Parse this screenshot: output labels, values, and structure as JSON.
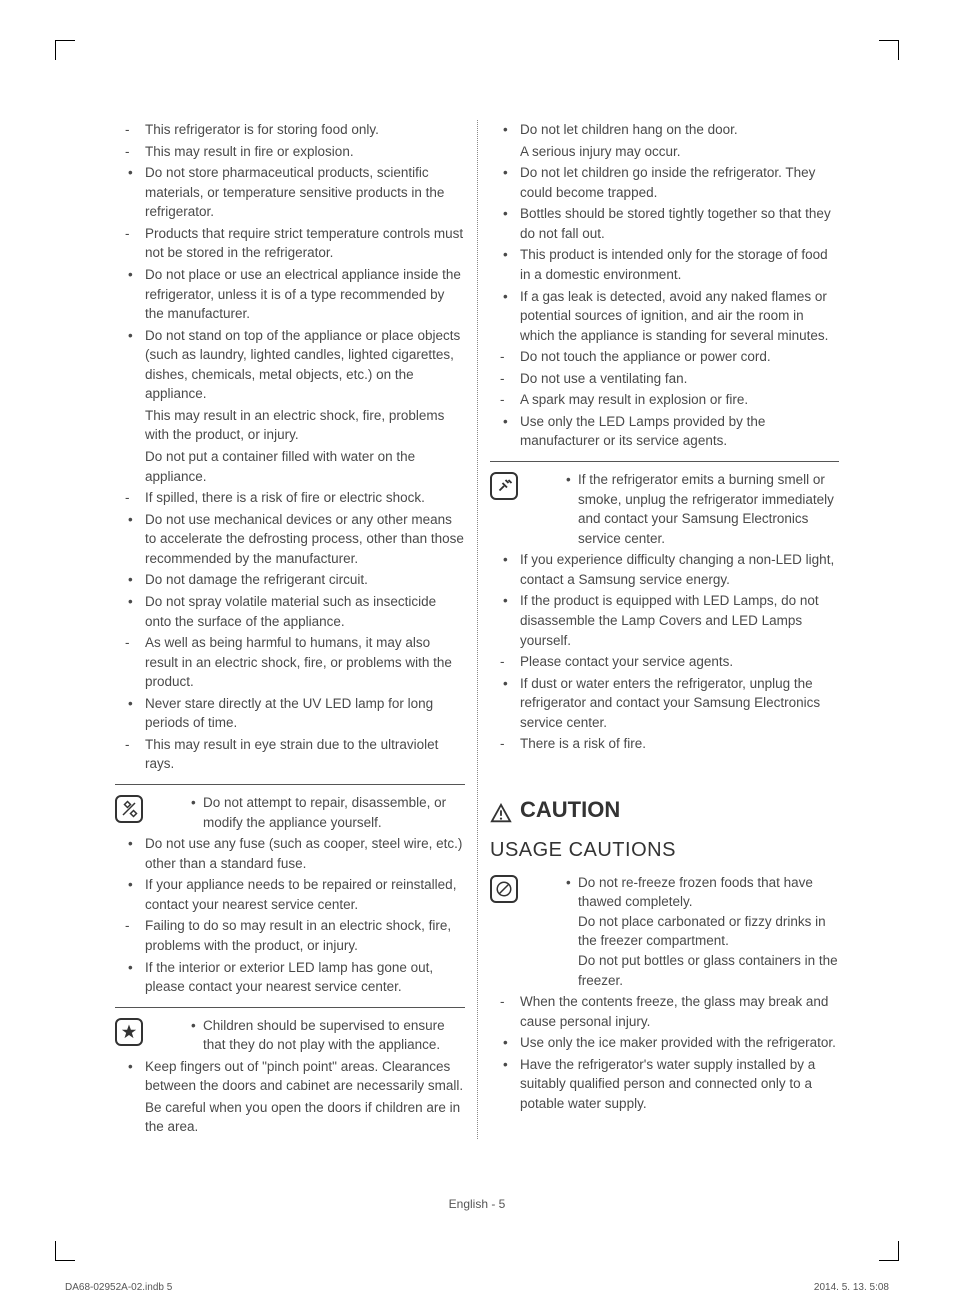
{
  "left": {
    "list1": [
      {
        "type": "dash",
        "text": "This refrigerator is for storing food only."
      },
      {
        "type": "dash",
        "text": "This may result in fire or  explosion."
      },
      {
        "type": "bullet",
        "text": "Do not store pharmaceutical products, scientific materials, or temperature sensitive products in the refrigerator."
      },
      {
        "type": "dash",
        "text": "Products that require strict temperature controls must not be stored in the refrigerator."
      },
      {
        "type": "bullet",
        "text": "Do not place or use an electrical appliance inside the refrigerator, unless it is of a type recommended by the manufacturer."
      },
      {
        "type": "bullet",
        "text": "Do not stand on top of the appliance or place objects (such as laundry, lighted candles, lighted cigarettes, dishes, chemicals, metal objects, etc.) on the appliance."
      },
      {
        "type": "cont",
        "text": "This may result in an electric shock, fire, problems with the product, or injury."
      },
      {
        "type": "cont",
        "text": "Do not put a container filled with water on the appliance."
      },
      {
        "type": "dash",
        "text": "If spilled, there is a risk of fire or electric shock."
      },
      {
        "type": "bullet",
        "text": "Do not use mechanical devices or any other means to accelerate the defrosting process, other than those recommended by the manufacturer."
      },
      {
        "type": "bullet",
        "text": "Do not damage the refrigerant circuit."
      },
      {
        "type": "bullet",
        "text": "Do not spray volatile material such as insecticide onto the surface of the appliance."
      },
      {
        "type": "dash",
        "text": "As well as being harmful to humans, it may also result in an electric shock, fire, or problems with the product."
      },
      {
        "type": "bullet",
        "text": "Never stare directly at the UV LED lamp for long periods of time."
      },
      {
        "type": "dash",
        "text": "This may result in eye strain due to the ultraviolet rays."
      }
    ],
    "sec2_first": "Do not attempt to repair, disassemble, or modify the appliance yourself.",
    "list2": [
      {
        "type": "bullet",
        "text": "Do not use any fuse (such as cooper, steel wire, etc.) other than a standard fuse."
      },
      {
        "type": "bullet",
        "text": "If your appliance needs to be repaired or reinstalled, contact your nearest service center."
      },
      {
        "type": "dash",
        "text": "Failing to do so may result in an electric shock, fire, problems with the product, or injury."
      },
      {
        "type": "bullet",
        "text": "If the interior or exterior LED lamp has gone out, please contact your nearest service center."
      }
    ],
    "sec3_first": "Children should be supervised to ensure that they do not play with the appliance.",
    "list3": [
      {
        "type": "bullet",
        "text": "Keep fingers out of \"pinch point\" areas. Clearances between the doors and cabinet are necessarily small."
      },
      {
        "type": "cont",
        "text": "Be careful when you open the doors if children are in the area."
      }
    ]
  },
  "right": {
    "list1": [
      {
        "type": "bullet",
        "text": "Do not let children hang on the door."
      },
      {
        "type": "cont",
        "text": "A serious injury may occur."
      },
      {
        "type": "bullet",
        "text": "Do not let children go inside the refrigerator. They could become trapped."
      },
      {
        "type": "bullet",
        "text": "Bottles should be stored tightly together so that they do not fall out."
      },
      {
        "type": "bullet",
        "text": "This product is intended only for the storage of food in a domestic environment."
      },
      {
        "type": "bullet",
        "text": "If a gas leak is detected, avoid any naked flames or potential sources of ignition, and air the room in which the appliance is standing for several minutes."
      },
      {
        "type": "dash",
        "text": "Do not touch the appliance or power cord."
      },
      {
        "type": "dash",
        "text": "Do not use a ventilating fan."
      },
      {
        "type": "dash",
        "text": "A spark may result in  explosion or fire."
      },
      {
        "type": "bullet",
        "text": "Use only the LED Lamps provided by the manufacturer or its service agents."
      }
    ],
    "sec2_first": "If the refrigerator emits a burning smell or smoke, unplug the refrigerator immediately and contact your Samsung Electronics service center.",
    "list2": [
      {
        "type": "bullet",
        "text": "If you experience difficulty changing a non-LED light, contact a Samsung service energy."
      },
      {
        "type": "bullet",
        "text": "If the product is equipped with LED Lamps, do not disassemble the Lamp Covers and LED Lamps yourself."
      },
      {
        "type": "dash",
        "text": "Please contact your service agents."
      },
      {
        "type": "bullet",
        "text": "If dust or water enters the refrigerator, unplug the refrigerator and contact your Samsung Electronics service center."
      },
      {
        "type": "dash",
        "text": "There is a risk of fire."
      }
    ],
    "caution": "CAUTION",
    "subhead": "USAGE CAUTIONS",
    "sec3_first": "Do not re-freeze frozen foods that have thawed completely.",
    "sec3_cont1": "Do not place carbonated or fizzy drinks in the freezer compartment.",
    "sec3_cont2": "Do not put bottles or glass containers in the freezer.",
    "list3": [
      {
        "type": "dash",
        "text": "When the contents freeze, the glass may break and cause personal injury."
      },
      {
        "type": "bullet",
        "text": "Use only the ice maker provided with the refrigerator."
      },
      {
        "type": "bullet",
        "text": "Have the refrigerator's water supply installed by a suitably qualified person and connected only to a potable water supply."
      }
    ]
  },
  "footer": {
    "page": "English - 5",
    "left": "DA68-02952A-02.indb   5",
    "right": "2014. 5. 13.     5:08"
  }
}
